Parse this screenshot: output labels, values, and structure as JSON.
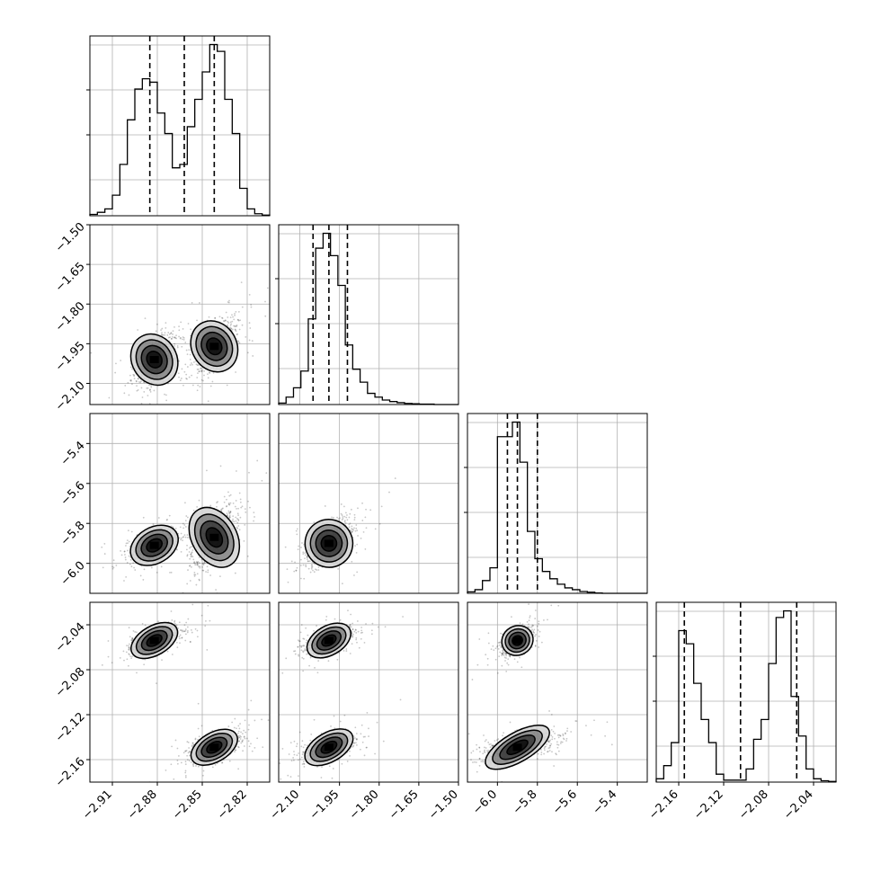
{
  "chart_data": {
    "type": "corner",
    "title": "",
    "parameters": [
      {
        "name": "",
        "range": [
          -2.925,
          -2.805
        ],
        "ticks": [
          -2.91,
          -2.88,
          -2.85,
          -2.82
        ],
        "tick_labels": [
          "−2.91",
          "−2.88",
          "−2.85",
          "−2.82"
        ],
        "quantiles": [
          -2.885,
          -2.862,
          -2.842
        ],
        "modes": [
          {
            "mean": -2.882,
            "sd": 0.0075,
            "weight": 0.5
          },
          {
            "mean": -2.842,
            "sd": 0.0075,
            "weight": 0.5
          }
        ]
      },
      {
        "name": "",
        "range": [
          -2.18,
          -1.5
        ],
        "ticks": [
          -2.1,
          -1.95,
          -1.8,
          -1.65,
          -1.5
        ],
        "tick_labels": [
          "−2.10",
          "−1.95",
          "−1.80",
          "−1.65",
          "−1.50"
        ],
        "quantiles": [
          -2.05,
          -1.99,
          -1.92
        ],
        "modes": [
          {
            "mean": -1.99,
            "sd": 0.045,
            "weight": 1.0
          }
        ]
      },
      {
        "name": "",
        "range": [
          -6.15,
          -5.25
        ],
        "ticks": [
          -6.0,
          -5.8,
          -5.6,
          -5.4
        ],
        "tick_labels": [
          "−6.0",
          "−5.8",
          "−5.6",
          "−5.4"
        ],
        "quantiles": [
          -5.95,
          -5.9,
          -5.8
        ],
        "modes": [
          {
            "mean": -5.9,
            "sd": 0.06,
            "weight": 1.0
          }
        ]
      },
      {
        "name": "",
        "range": [
          -2.18,
          -2.02
        ],
        "ticks": [
          -2.16,
          -2.12,
          -2.08,
          -2.04
        ],
        "tick_labels": [
          "−2.16",
          "−2.12",
          "−2.08",
          "−2.04"
        ],
        "quantiles": [
          -2.155,
          -2.105,
          -2.055
        ],
        "modes": [
          {
            "mean": -2.149,
            "sd": 0.0065,
            "weight": 0.5
          },
          {
            "mean": -2.054,
            "sd": 0.0065,
            "weight": 0.5
          }
        ]
      }
    ],
    "histograms": [
      {
        "parameter": 0,
        "bins": [
          -2.925,
          -2.92,
          -2.915,
          -2.91,
          -2.905,
          -2.9,
          -2.895,
          -2.89,
          -2.885,
          -2.88,
          -2.875,
          -2.87,
          -2.865,
          -2.86,
          -2.855,
          -2.85,
          -2.845,
          -2.84,
          -2.835,
          -2.83,
          -2.825,
          -2.82,
          -2.815,
          -2.81,
          -2.805
        ],
        "counts": [
          2,
          5,
          10,
          30,
          75,
          140,
          185,
          200,
          195,
          150,
          120,
          70,
          75,
          130,
          170,
          210,
          250,
          240,
          170,
          120,
          40,
          10,
          3,
          1
        ]
      },
      {
        "parameter": 1,
        "bins": [
          -2.18,
          -2.152,
          -2.124,
          -2.096,
          -2.068,
          -2.04,
          -2.012,
          -1.984,
          -1.956,
          -1.928,
          -1.9,
          -1.872,
          -1.844,
          -1.816,
          -1.788,
          -1.76,
          -1.732,
          -1.704,
          -1.676,
          -1.648,
          -1.62,
          -1.592,
          -1.564,
          -1.536,
          -1.5
        ],
        "counts": [
          4,
          20,
          45,
          90,
          230,
          420,
          460,
          400,
          320,
          160,
          95,
          60,
          30,
          20,
          12,
          8,
          5,
          3,
          2,
          1,
          1,
          0,
          0,
          0
        ]
      },
      {
        "parameter": 2,
        "bins": [
          -6.15,
          -6.1125,
          -6.075,
          -6.0375,
          -6.0,
          -5.9625,
          -5.925,
          -5.8875,
          -5.85,
          -5.8125,
          -5.775,
          -5.7375,
          -5.7,
          -5.6625,
          -5.625,
          -5.5875,
          -5.55,
          -5.5125,
          -5.475,
          -5.4375,
          -5.4,
          -5.3625,
          -5.325,
          -5.2875,
          -5.25
        ],
        "counts": [
          4,
          10,
          35,
          70,
          430,
          430,
          470,
          360,
          170,
          95,
          60,
          40,
          25,
          15,
          10,
          5,
          3,
          1,
          0,
          0,
          0,
          0,
          0,
          0
        ]
      },
      {
        "parameter": 3,
        "bins": [
          -2.18,
          -2.173333,
          -2.166667,
          -2.16,
          -2.153333,
          -2.146667,
          -2.14,
          -2.133333,
          -2.126667,
          -2.12,
          -2.113333,
          -2.106667,
          -2.1,
          -2.093333,
          -2.086667,
          -2.08,
          -2.073333,
          -2.066667,
          -2.06,
          -2.053333,
          -2.046667,
          -2.04,
          -2.033333,
          -2.026667,
          -2.02
        ],
        "counts": [
          5,
          25,
          60,
          230,
          210,
          150,
          95,
          60,
          12,
          3,
          3,
          3,
          20,
          65,
          95,
          180,
          250,
          260,
          130,
          70,
          20,
          5,
          2,
          1
        ]
      }
    ],
    "pair_panels": [
      {
        "x": 0,
        "y": 1,
        "clusters": [
          {
            "cx": -2.882,
            "cy": -2.01,
            "sx": 0.0075,
            "sy": 0.05
          },
          {
            "cx": -2.842,
            "cy": -1.96,
            "sx": 0.0075,
            "sy": 0.05
          }
        ]
      },
      {
        "x": 0,
        "y": 2,
        "clusters": [
          {
            "cx": -2.882,
            "cy": -5.91,
            "sx": 0.0085,
            "sy": 0.045
          },
          {
            "cx": -2.842,
            "cy": -5.87,
            "sx": 0.0075,
            "sy": 0.08
          }
        ]
      },
      {
        "x": 1,
        "y": 2,
        "clusters": [
          {
            "cx": -1.99,
            "cy": -5.9,
            "sx": 0.045,
            "sy": 0.06
          }
        ]
      },
      {
        "x": 0,
        "y": 3,
        "clusters": [
          {
            "cx": -2.882,
            "cy": -2.054,
            "sx": 0.0085,
            "sy": 0.0065
          },
          {
            "cx": -2.842,
            "cy": -2.149,
            "sx": 0.0085,
            "sy": 0.0065
          }
        ]
      },
      {
        "x": 1,
        "y": 3,
        "clusters": [
          {
            "cx": -1.99,
            "cy": -2.054,
            "sx": 0.045,
            "sy": 0.0065
          },
          {
            "cx": -1.99,
            "cy": -2.149,
            "sx": 0.05,
            "sy": 0.0065
          }
        ]
      },
      {
        "x": 2,
        "y": 3,
        "clusters": [
          {
            "cx": -5.9,
            "cy": -2.054,
            "sx": 0.04,
            "sy": 0.0065
          },
          {
            "cx": -5.9,
            "cy": -2.149,
            "sx": 0.09,
            "sy": 0.0065
          }
        ]
      }
    ],
    "contour_levels": 4,
    "grid": true,
    "legend": "none",
    "colors": {
      "line": "#000000",
      "grid": "#b0b0b0",
      "density": "#000000",
      "frame": "#000000"
    }
  }
}
